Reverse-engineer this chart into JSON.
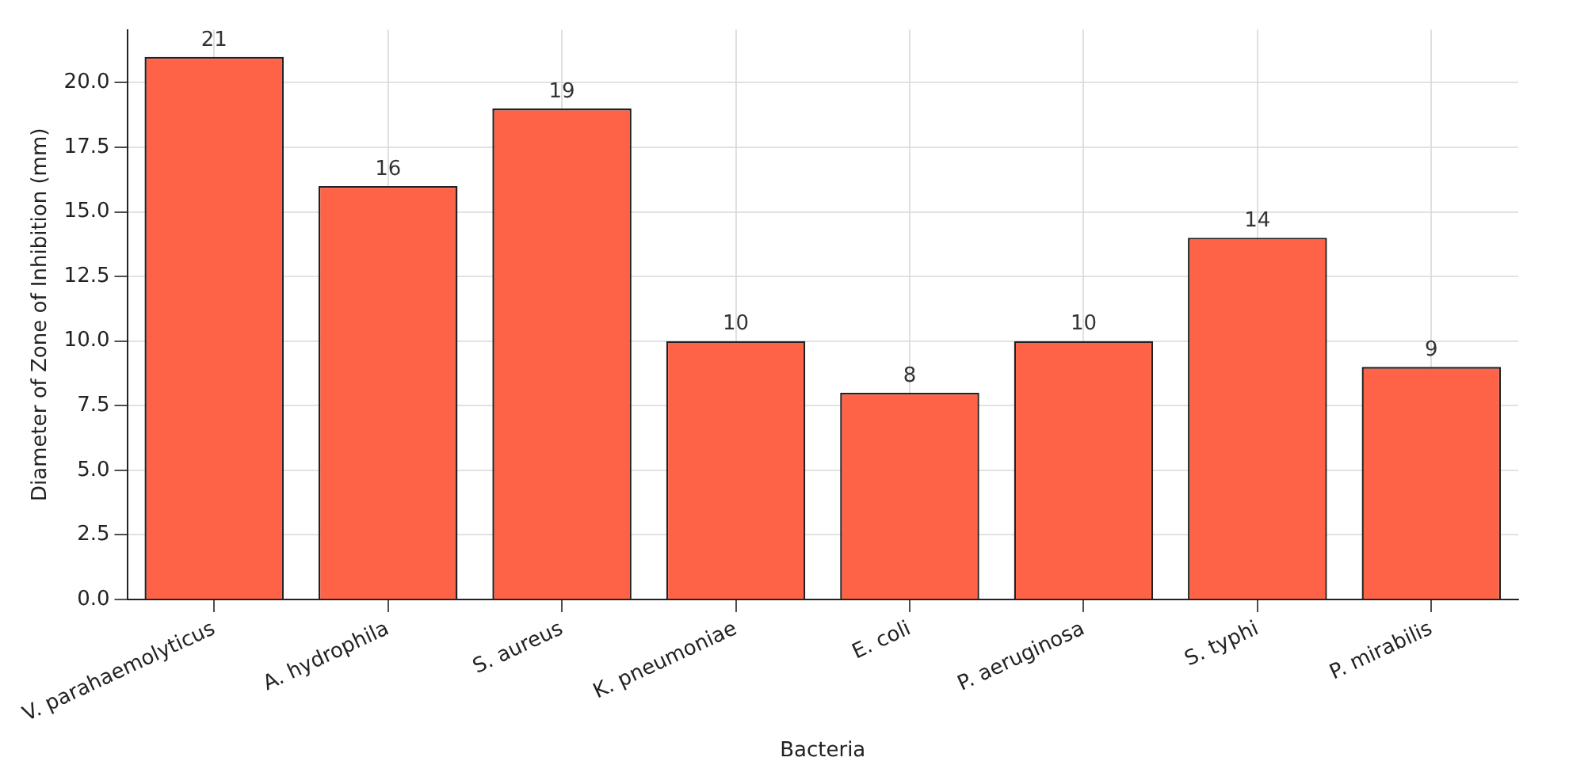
{
  "chart_data": {
    "type": "bar",
    "xlabel": "Bacteria",
    "ylabel": "Diameter of Zone of Inhibition (mm)",
    "categories": [
      "V. parahaemolyticus",
      "A. hydrophila",
      "S. aureus",
      "K. pneumoniae",
      "E. coli",
      "P. aeruginosa",
      "S. typhi",
      "P. mirabilis"
    ],
    "values": [
      21,
      16,
      19,
      10,
      8,
      10,
      14,
      9
    ],
    "color": "#ff6347",
    "ylim": [
      0,
      22.05
    ],
    "yticks": [
      {
        "value": 0,
        "label": "0.0"
      },
      {
        "value": 2.5,
        "label": "2.5"
      },
      {
        "value": 5,
        "label": "5.0"
      },
      {
        "value": 7.5,
        "label": "7.5"
      },
      {
        "value": 10,
        "label": "10.0"
      },
      {
        "value": 12.5,
        "label": "12.5"
      },
      {
        "value": 15,
        "label": "15.0"
      },
      {
        "value": 17.5,
        "label": "17.5"
      },
      {
        "value": 20,
        "label": "20.0"
      }
    ],
    "grid": true,
    "data_labels": true
  }
}
